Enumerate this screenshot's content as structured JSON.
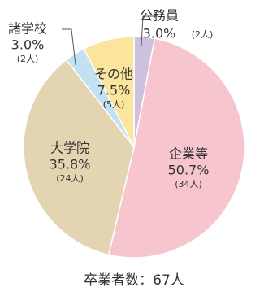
{
  "chart_data": {
    "type": "pie",
    "categories": [
      "公務員",
      "企業等",
      "大学院",
      "諸学校",
      "その他"
    ],
    "values": [
      3.0,
      50.7,
      35.8,
      3.0,
      7.5
    ],
    "value_labels": [
      "3.0%",
      "50.7%",
      "35.8%",
      "3.0%",
      "7.5%"
    ],
    "count_labels": [
      "(2人)",
      "(34人)",
      "(24人)",
      "(2人)",
      "(5人)"
    ],
    "colors": [
      "#cdc1de",
      "#f6c5cd",
      "#e3d4b2",
      "#c2e2f1",
      "#fbe59c"
    ],
    "note": "卒業者数：67人"
  }
}
